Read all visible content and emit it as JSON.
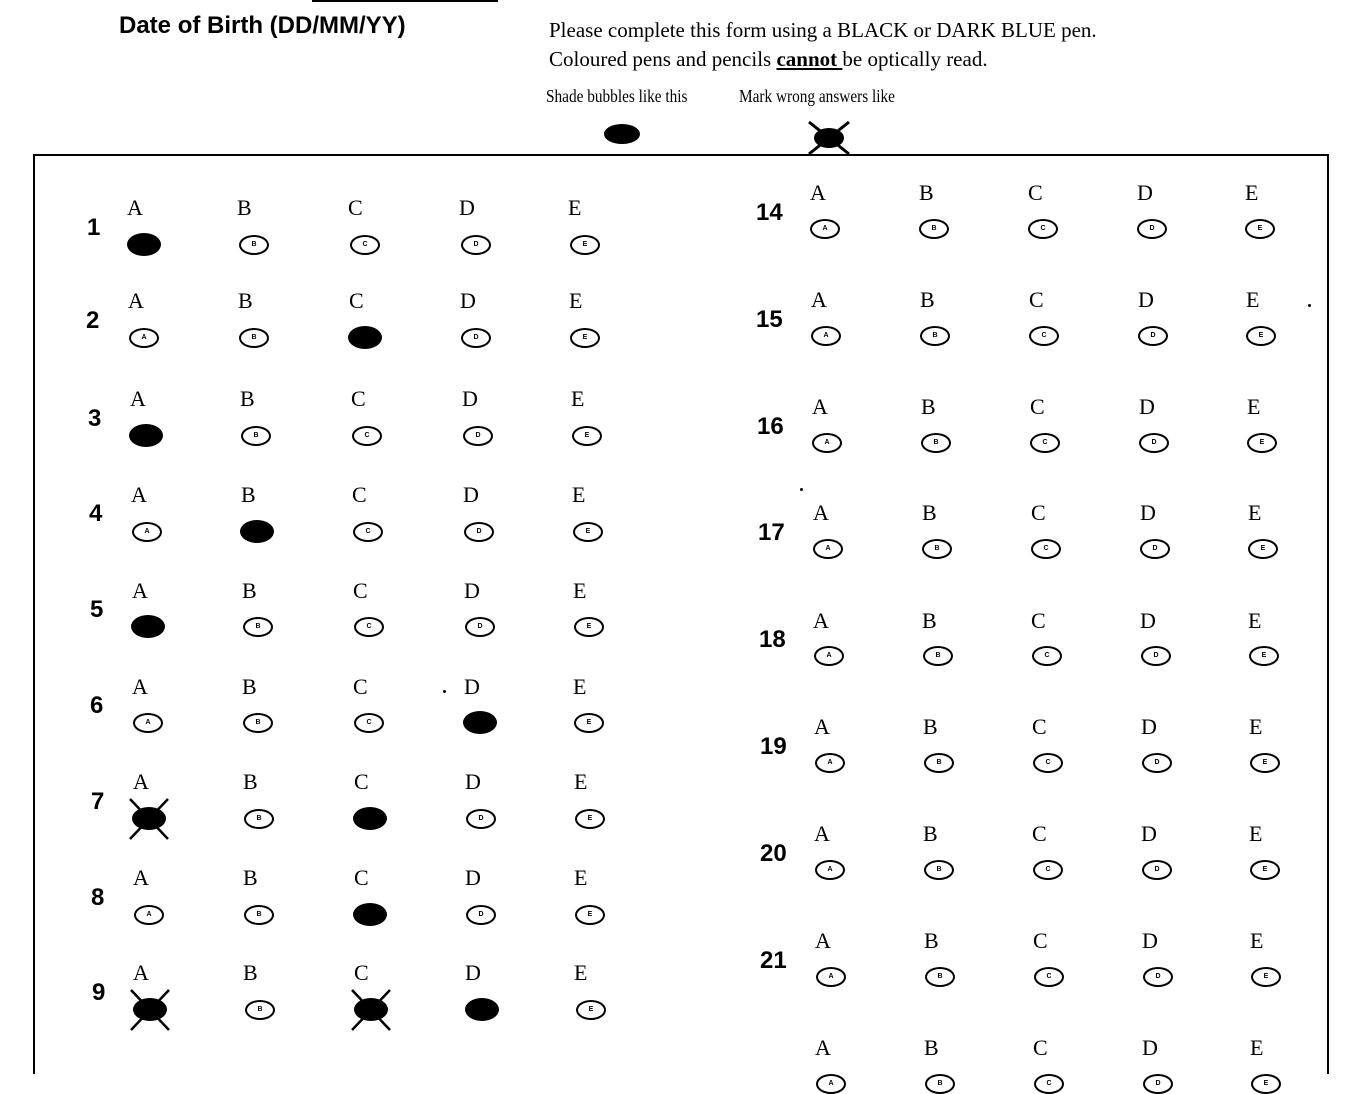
{
  "header": {
    "dob_label": "Date of Birth (DD/MM/YY)",
    "instruction_line1": "Please complete this form using a BLACK or DARK BLUE pen.",
    "instruction_line2_before": "Coloured pens and pencils ",
    "instruction_line2_emphasis": "cannot ",
    "instruction_line2_after": "be optically read.",
    "shade_label": "Shade bubbles like this",
    "wrong_label": "Mark wrong answers like"
  },
  "options": [
    "A",
    "B",
    "C",
    "D",
    "E"
  ],
  "questions": [
    {
      "number": "1",
      "filled": [
        "A"
      ],
      "crossed": []
    },
    {
      "number": "2",
      "filled": [
        "C"
      ],
      "crossed": []
    },
    {
      "number": "3",
      "filled": [
        "A"
      ],
      "crossed": []
    },
    {
      "number": "4",
      "filled": [
        "B"
      ],
      "crossed": []
    },
    {
      "number": "5",
      "filled": [
        "A"
      ],
      "crossed": []
    },
    {
      "number": "6",
      "filled": [
        "D"
      ],
      "crossed": []
    },
    {
      "number": "7",
      "filled": [
        "A",
        "C"
      ],
      "crossed": [
        "A"
      ]
    },
    {
      "number": "8",
      "filled": [
        "C"
      ],
      "crossed": []
    },
    {
      "number": "9",
      "filled": [
        "A",
        "C",
        "D"
      ],
      "crossed": [
        "A",
        "C"
      ]
    },
    {
      "number": "14",
      "filled": [],
      "crossed": []
    },
    {
      "number": "15",
      "filled": [],
      "crossed": []
    },
    {
      "number": "16",
      "filled": [],
      "crossed": []
    },
    {
      "number": "17",
      "filled": [],
      "crossed": []
    },
    {
      "number": "18",
      "filled": [],
      "crossed": []
    },
    {
      "number": "19",
      "filled": [],
      "crossed": []
    },
    {
      "number": "20",
      "filled": [],
      "crossed": []
    },
    {
      "number": "21",
      "filled": [],
      "crossed": []
    },
    {
      "number": "",
      "filled": [],
      "crossed": []
    }
  ]
}
